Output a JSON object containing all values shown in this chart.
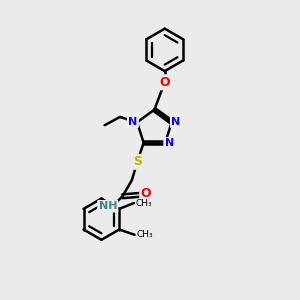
{
  "bg_color": "#ebebeb",
  "bond_color": "#000000",
  "bond_width": 1.8,
  "atom_colors": {
    "N": "#0000ee",
    "O": "#ee0000",
    "S": "#bbbb00",
    "NH": "#3a8a8a"
  },
  "font_size": 8
}
